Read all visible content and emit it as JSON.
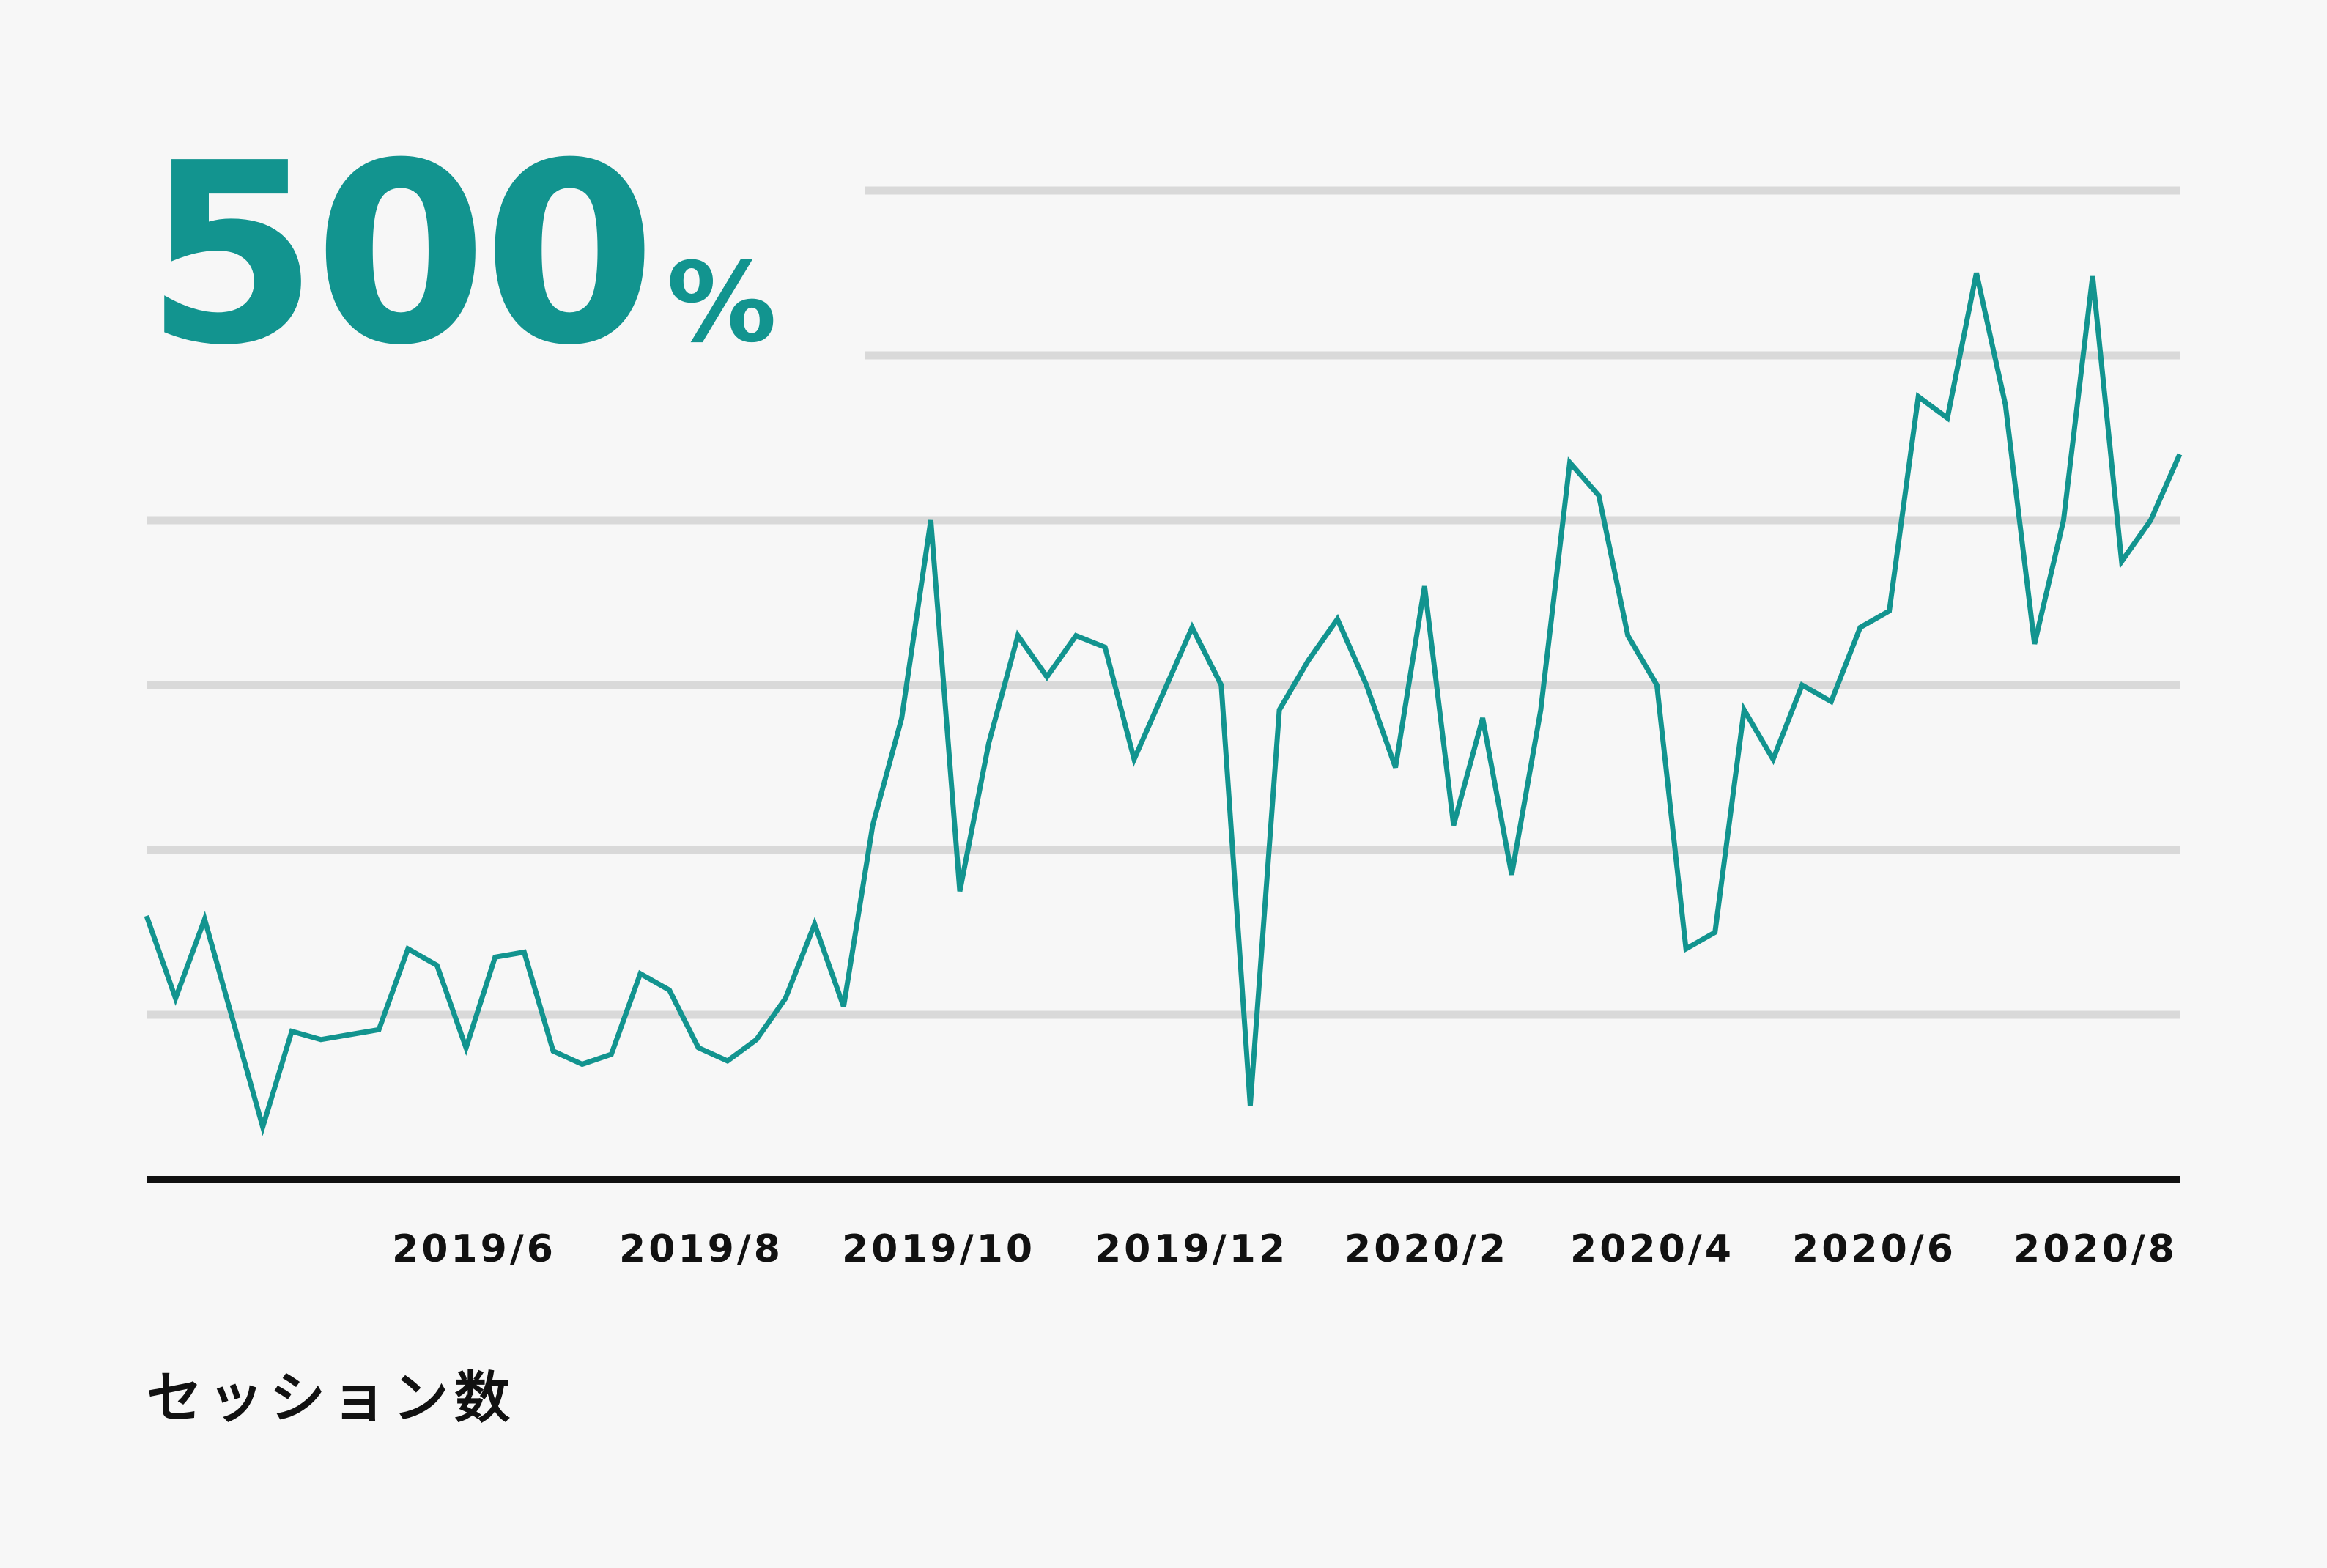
{
  "headline": {
    "value": "500",
    "unit": "%"
  },
  "series_label": "セッション数",
  "colors": {
    "accent": "#12948f",
    "grid": "#d9d9d9",
    "axis": "#111111",
    "background": "#f7f7f7"
  },
  "chart_data": {
    "type": "line",
    "title": "",
    "xlabel": "",
    "ylabel": "セッション数",
    "grid": true,
    "x_ticks": [
      "2019/6",
      "2019/8",
      "2019/10",
      "2019/12",
      "2020/2",
      "2020/4",
      "2020/6",
      "2020/8"
    ],
    "y_gridlines": [
      1,
      2,
      3,
      4,
      5,
      6
    ],
    "ylim": [
      0,
      6.6
    ],
    "series": [
      {
        "values": [
          1.6,
          1.1,
          1.58,
          0.95,
          0.32,
          0.9,
          0.85,
          0.88,
          0.91,
          1.4,
          1.3,
          0.8,
          1.35,
          1.38,
          0.78,
          0.7,
          0.76,
          1.25,
          1.15,
          0.8,
          0.72,
          0.85,
          1.1,
          1.55,
          1.05,
          2.15,
          2.8,
          4.0,
          1.75,
          2.65,
          3.3,
          3.05,
          3.3,
          3.23,
          2.55,
          2.95,
          3.35,
          3.0,
          0.45,
          2.85,
          3.15,
          3.4,
          3.0,
          2.5,
          3.6,
          2.15,
          2.8,
          1.85,
          2.85,
          4.35,
          4.15,
          3.3,
          3.0,
          1.4,
          1.5,
          2.85,
          2.55,
          3.0,
          2.9,
          3.35,
          3.45,
          4.75,
          4.62,
          5.5,
          4.7,
          3.25,
          4.0,
          5.48,
          3.75,
          4.0,
          4.4
        ]
      }
    ]
  }
}
